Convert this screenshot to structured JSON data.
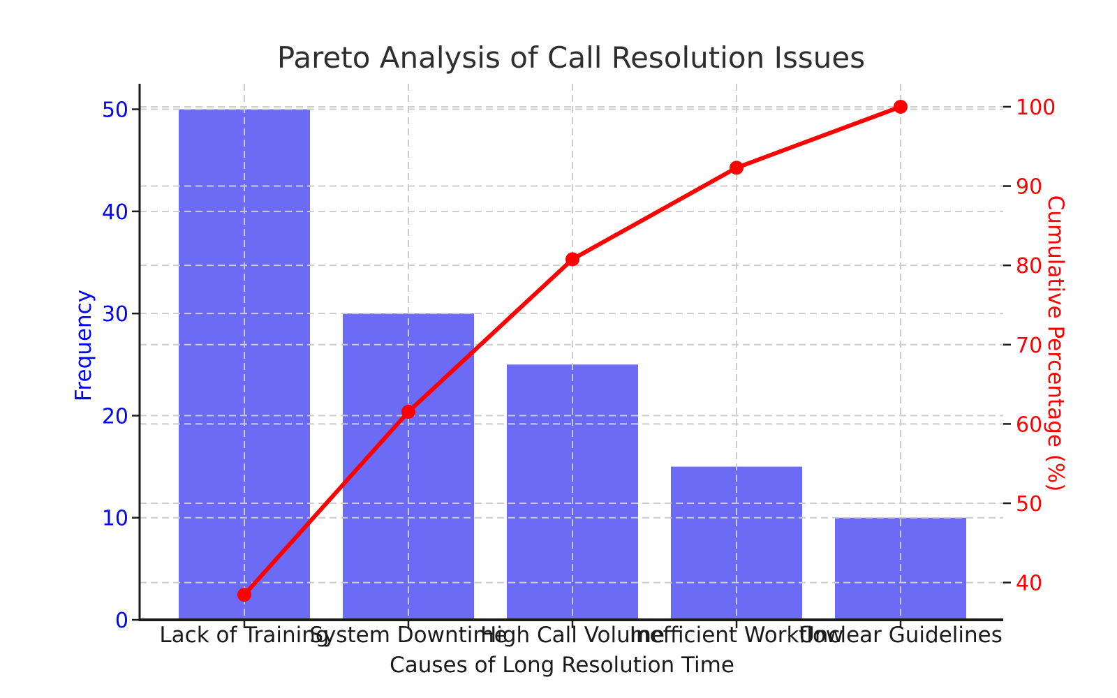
{
  "chart_data": {
    "type": "pareto (bar + cumulative line)",
    "title": "Pareto Analysis of Call Resolution Issues",
    "xlabel": "Causes of Long Resolution Time",
    "categories": [
      "Lack of Training",
      "System Downtime",
      "High Call Volume",
      "Inefficient Workflow",
      "Unclear Guidelines"
    ],
    "series": [
      {
        "name": "Frequency",
        "type": "bar",
        "axis": "left",
        "color": "#6b6bf6",
        "values": [
          50,
          30,
          25,
          15,
          10
        ]
      },
      {
        "name": "Cumulative Percentage",
        "type": "line",
        "axis": "right",
        "color": "#ff0000",
        "marker": "circle",
        "values": [
          38.46,
          61.54,
          80.77,
          92.31,
          100.0
        ]
      }
    ],
    "left_axis": {
      "label": "Frequency",
      "color": "#0000ff",
      "ticks": [
        0,
        10,
        20,
        30,
        40,
        50
      ],
      "range": [
        0,
        52.5
      ]
    },
    "right_axis": {
      "label": "Cumulative Percentage (%)",
      "color": "#ff0000",
      "ticks": [
        40,
        50,
        60,
        70,
        80,
        90,
        100
      ],
      "range": [
        35.3,
        102.9
      ]
    },
    "grid": {
      "show": true,
      "style": "dashed",
      "color": "#cccccc"
    },
    "legend": "none",
    "title_color": "#2e2e2e",
    "x_tick_color": "#1a1a1a",
    "spine_color": "#1a1a1a"
  }
}
